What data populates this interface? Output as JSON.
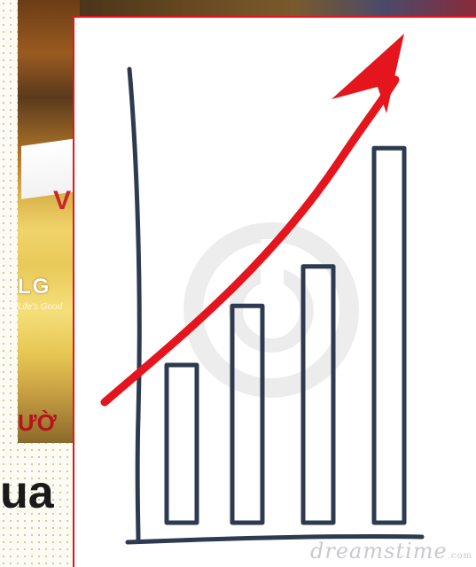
{
  "background": {
    "logo_text": "LG",
    "logo_tagline": "Life's Good",
    "store_text": "ƯỜ",
    "sign_text": "V",
    "partial_heading": "ua"
  },
  "chart_image": {
    "watermark": "dreamstime",
    "watermark_suffix": ".com",
    "colors": {
      "bars": "#2e3a4f",
      "arrow": "#e4151c",
      "border": "#e4151c"
    },
    "chart_data": {
      "type": "bar",
      "categories": [
        "",
        "",
        "",
        ""
      ],
      "values": [
        40,
        55,
        65,
        95
      ],
      "trend": "rising-arrow",
      "ylim": [
        0,
        100
      ]
    }
  }
}
